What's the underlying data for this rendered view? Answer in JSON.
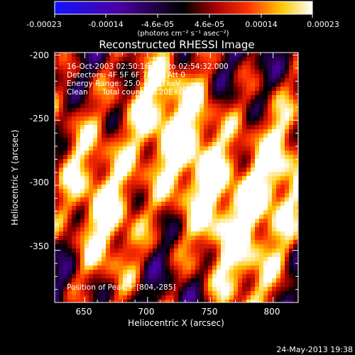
{
  "colorbar": {
    "tick_labels": [
      "-0.00023",
      "-0.00014",
      "-4.6e-05",
      "4.6e-05",
      "0.00014",
      "0.00023"
    ],
    "units": "(photons cm⁻² s⁻¹ asec⁻²)",
    "colors": [
      "#1414ff",
      "#4b00a0",
      "#000000",
      "#a00000",
      "#ff3200",
      "#ffc800",
      "#ffffff"
    ]
  },
  "annotation": {
    "line1": "16-Oct-2003 02:50:16.000 to 02:54:32.000",
    "line2": "Detectors: 4F 5F 6F 7F 8F, Att 0",
    "line3": "Energy Range: 25.0 - 50.0 keV",
    "line4": "Clean      Total counts: 6.20E+03",
    "peak": "Position of Peak = [804,-285]"
  },
  "footer": {
    "timestamp": "24-May-2013 19:38"
  },
  "chart_data": {
    "type": "heatmap",
    "title": "Reconstructed RHESSI Image",
    "xlabel": "Heliocentric X (arcsec)",
    "ylabel": "Heliocentric Y (arcsec)",
    "xlim": [
      626,
      820
    ],
    "ylim": [
      -390,
      -198
    ],
    "x_ticks": [
      650,
      700,
      750,
      800
    ],
    "y_ticks": [
      -200,
      -250,
      -300,
      -350
    ],
    "value_range": [
      -0.00023,
      0.00023
    ],
    "peak_position": [
      804,
      -285
    ],
    "bright_sources": [
      {
        "x": 804,
        "y": -285,
        "value": 0.00023
      },
      {
        "x": 668,
        "y": -330,
        "value": 0.0002
      },
      {
        "x": 730,
        "y": -262,
        "value": 0.0002
      },
      {
        "x": 755,
        "y": -320,
        "value": 0.00016
      },
      {
        "x": 700,
        "y": -235,
        "value": 0.00015
      },
      {
        "x": 640,
        "y": -275,
        "value": 0.00012
      },
      {
        "x": 780,
        "y": -365,
        "value": 0.00014
      }
    ]
  }
}
